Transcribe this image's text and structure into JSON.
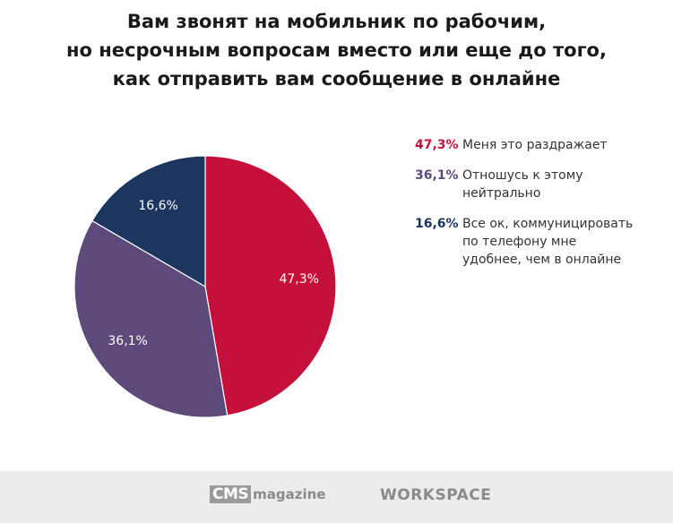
{
  "chart_data": {
    "type": "pie",
    "title": [
      "Вам звонят на мобильник по рабочим,",
      "но несрочным вопросам вместо или еще до того,",
      "как отправить вам сообщение в онлайне"
    ],
    "slices": [
      {
        "label": "Меня это раздражает",
        "value": 47.3,
        "value_label": "47,3%",
        "color": "#C4103B"
      },
      {
        "label": "Отношусь к этому нейтрально",
        "value": 36.1,
        "value_label": "36,1%",
        "color": "#5E4A7A"
      },
      {
        "label": "Все ок, коммуницировать по телефону мне удобнее, чем в онлайне",
        "value": 16.6,
        "value_label": "16,6%",
        "color": "#1C3660"
      }
    ],
    "legend_placement": "right"
  },
  "footer": {
    "cms_box": "CMS",
    "cms_text": "magazine",
    "workspace": "WORKSPACE"
  }
}
